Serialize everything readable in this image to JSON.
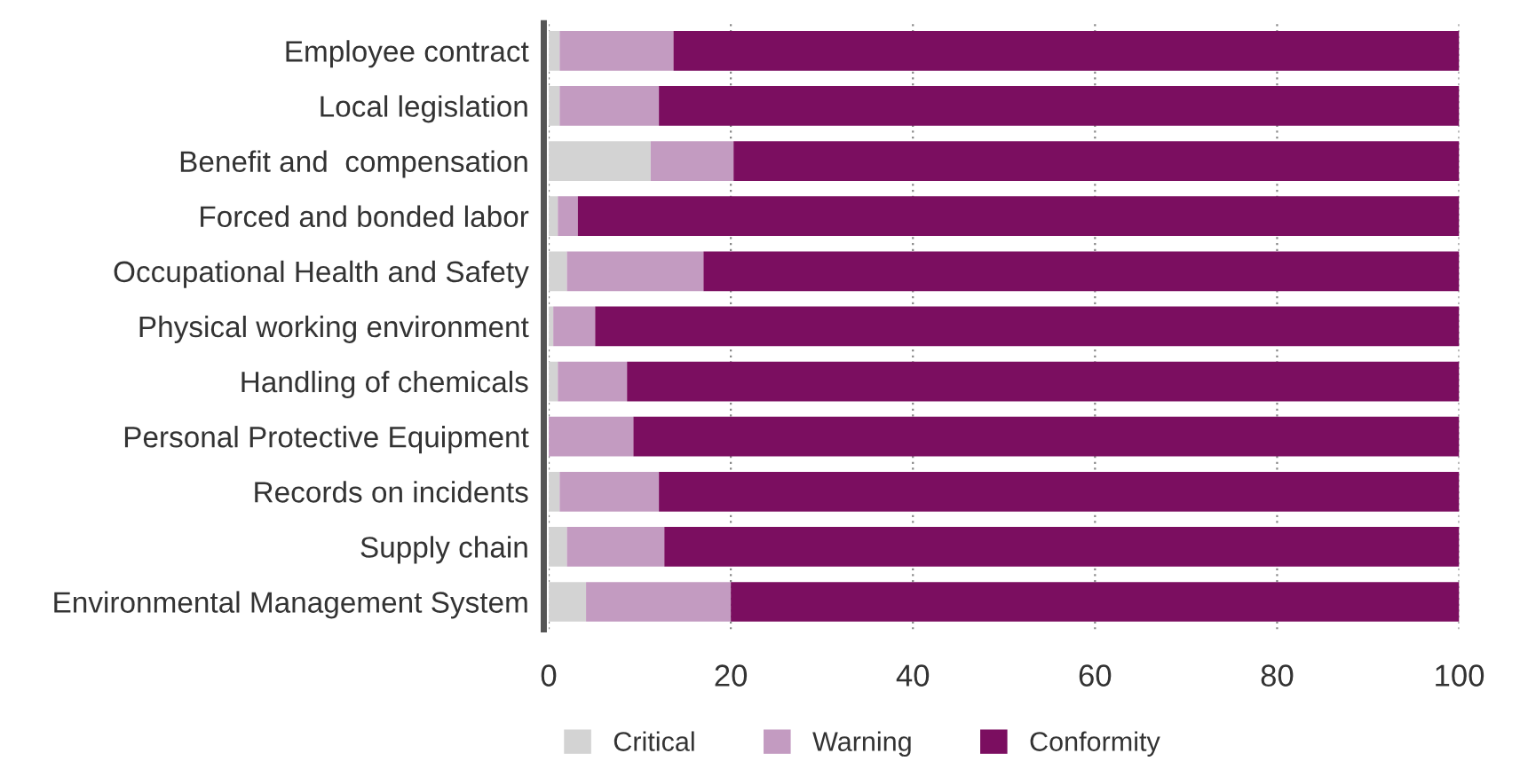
{
  "chart_data": {
    "type": "bar",
    "orientation": "horizontal",
    "stacked": true,
    "categories": [
      "Employee contract",
      "Local legislation",
      "Benefit and  compensation",
      "Forced and bonded labor",
      "Occupational Health and Safety",
      "Physical working environment",
      "Handling of chemicals",
      "Personal Protective Equipment",
      "Records on incidents",
      "Supply chain",
      "Environmental Management System"
    ],
    "series": [
      {
        "name": "Critical",
        "color": "#d3d3d3",
        "values": [
          1.2,
          1.2,
          11.2,
          1.0,
          2.0,
          0.5,
          1.0,
          null,
          1.2,
          2.0,
          4.1
        ]
      },
      {
        "name": "Warning",
        "color": "#c39bc1",
        "values": [
          12.5,
          10.9,
          9.1,
          2.2,
          15.0,
          4.6,
          7.6,
          9.3,
          10.9,
          10.7,
          15.9
        ]
      },
      {
        "name": "Conformity",
        "color": "#7b0e60",
        "values": [
          86.3,
          87.9,
          79.7,
          96.8,
          83.0,
          94.9,
          91.4,
          90.7,
          87.9,
          87.3,
          80.0
        ]
      }
    ],
    "xlim": [
      0,
      100
    ],
    "xticks": [
      0,
      20,
      40,
      60,
      80,
      100
    ],
    "grid": "x",
    "legend": "bottom left"
  }
}
